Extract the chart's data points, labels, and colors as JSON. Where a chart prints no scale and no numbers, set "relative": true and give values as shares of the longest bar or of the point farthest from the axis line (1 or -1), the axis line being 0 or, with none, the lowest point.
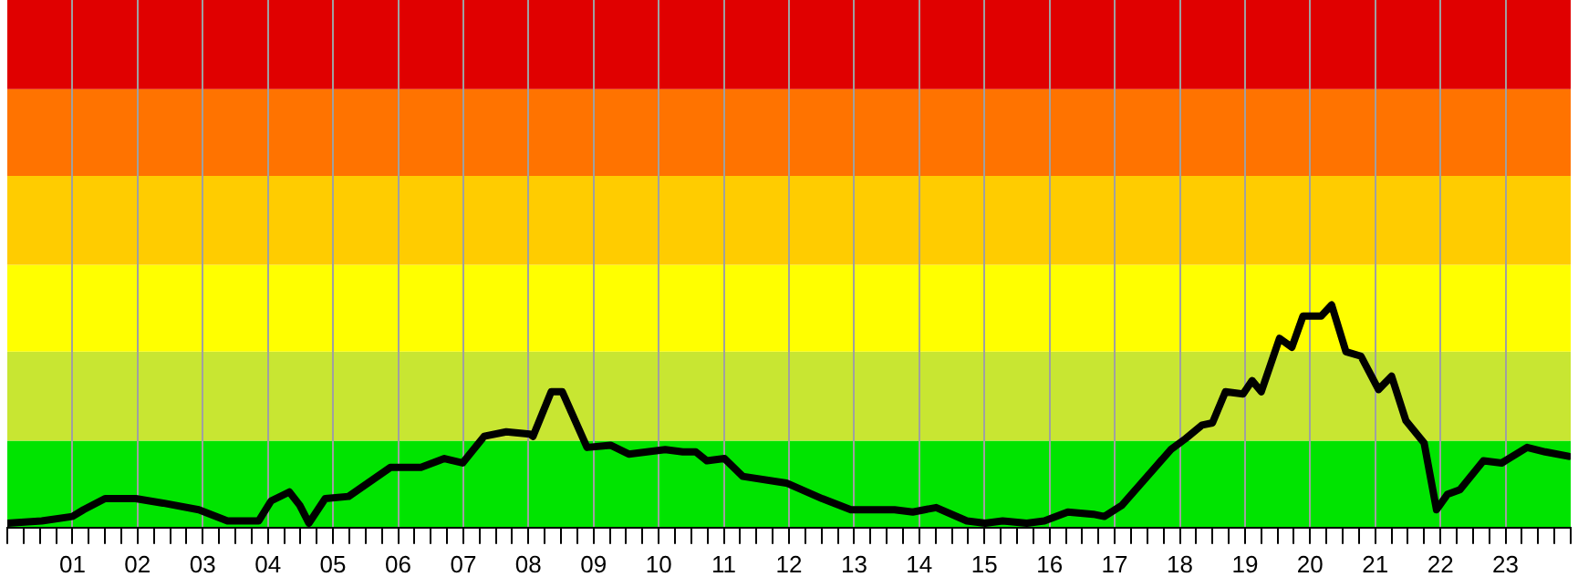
{
  "chart_data": {
    "type": "line",
    "relative": true,
    "x": [
      0,
      0.53,
      1.0,
      1.17,
      1.5,
      1.97,
      2.39,
      2.94,
      3.38,
      3.86,
      4.05,
      4.33,
      4.49,
      4.63,
      4.88,
      5.24,
      5.88,
      6.35,
      6.71,
      6.99,
      7.32,
      7.66,
      8.02,
      8.07,
      8.35,
      8.52,
      8.9,
      9.26,
      9.54,
      10.1,
      10.37,
      10.57,
      10.74,
      11.01,
      11.29,
      11.96,
      12.51,
      12.95,
      13.62,
      13.9,
      14.26,
      14.73,
      15.01,
      15.28,
      15.65,
      15.92,
      16.28,
      16.67,
      16.84,
      17.11,
      17.5,
      17.86,
      18.09,
      18.34,
      18.5,
      18.7,
      18.97,
      19.11,
      19.25,
      19.53,
      19.72,
      19.89,
      20.17,
      20.33,
      20.55,
      20.78,
      21.05,
      21.25,
      21.47,
      21.75,
      21.94,
      22.11,
      22.3,
      22.66,
      22.94,
      23.33,
      23.61,
      23.97
    ],
    "series": [
      {
        "color": "#000000",
        "values": [
          0.02,
          0.03,
          0.05,
          0.08,
          0.13,
          0.13,
          0.11,
          0.08,
          0.03,
          0.03,
          0.12,
          0.16,
          0.1,
          0.02,
          0.13,
          0.14,
          0.27,
          0.27,
          0.31,
          0.29,
          0.41,
          0.43,
          0.42,
          0.41,
          0.61,
          0.61,
          0.36,
          0.37,
          0.33,
          0.35,
          0.34,
          0.34,
          0.3,
          0.31,
          0.23,
          0.2,
          0.13,
          0.08,
          0.08,
          0.07,
          0.09,
          0.03,
          0.02,
          0.03,
          0.02,
          0.03,
          0.07,
          0.06,
          0.05,
          0.1,
          0.23,
          0.35,
          0.4,
          0.46,
          0.47,
          0.61,
          0.6,
          0.66,
          0.61,
          0.85,
          0.81,
          0.95,
          0.95,
          1.0,
          0.79,
          0.77,
          0.62,
          0.68,
          0.48,
          0.38,
          0.08,
          0.15,
          0.17,
          0.3,
          0.29,
          0.36,
          0.34,
          0.32
        ]
      }
    ],
    "xlim": [
      0,
      24
    ],
    "xticks": [
      {
        "value": 0,
        "label": null
      },
      {
        "value": 0.25,
        "label": null
      },
      {
        "value": 0.5,
        "label": null
      },
      {
        "value": 0.75,
        "label": null
      },
      {
        "value": 1,
        "label": "01"
      },
      {
        "value": 1.25,
        "label": null
      },
      {
        "value": 1.5,
        "label": null
      },
      {
        "value": 1.75,
        "label": null
      },
      {
        "value": 2,
        "label": "02"
      },
      {
        "value": 2.25,
        "label": null
      },
      {
        "value": 2.5,
        "label": null
      },
      {
        "value": 2.75,
        "label": null
      },
      {
        "value": 3,
        "label": "03"
      },
      {
        "value": 3.25,
        "label": null
      },
      {
        "value": 3.5,
        "label": null
      },
      {
        "value": 3.75,
        "label": null
      },
      {
        "value": 4,
        "label": "04"
      },
      {
        "value": 4.25,
        "label": null
      },
      {
        "value": 4.5,
        "label": null
      },
      {
        "value": 4.75,
        "label": null
      },
      {
        "value": 5,
        "label": "05"
      },
      {
        "value": 5.25,
        "label": null
      },
      {
        "value": 5.5,
        "label": null
      },
      {
        "value": 5.75,
        "label": null
      },
      {
        "value": 6,
        "label": "06"
      },
      {
        "value": 6.25,
        "label": null
      },
      {
        "value": 6.5,
        "label": null
      },
      {
        "value": 6.75,
        "label": null
      },
      {
        "value": 7,
        "label": "07"
      },
      {
        "value": 7.25,
        "label": null
      },
      {
        "value": 7.5,
        "label": null
      },
      {
        "value": 7.75,
        "label": null
      },
      {
        "value": 8,
        "label": "08"
      },
      {
        "value": 8.25,
        "label": null
      },
      {
        "value": 8.5,
        "label": null
      },
      {
        "value": 8.75,
        "label": null
      },
      {
        "value": 9,
        "label": "09"
      },
      {
        "value": 9.25,
        "label": null
      },
      {
        "value": 9.5,
        "label": null
      },
      {
        "value": 9.75,
        "label": null
      },
      {
        "value": 10,
        "label": "10"
      },
      {
        "value": 10.25,
        "label": null
      },
      {
        "value": 10.5,
        "label": null
      },
      {
        "value": 10.75,
        "label": null
      },
      {
        "value": 11,
        "label": "11"
      },
      {
        "value": 11.25,
        "label": null
      },
      {
        "value": 11.5,
        "label": null
      },
      {
        "value": 11.75,
        "label": null
      },
      {
        "value": 12,
        "label": "12"
      },
      {
        "value": 12.25,
        "label": null
      },
      {
        "value": 12.5,
        "label": null
      },
      {
        "value": 12.75,
        "label": null
      },
      {
        "value": 13,
        "label": "13"
      },
      {
        "value": 13.25,
        "label": null
      },
      {
        "value": 13.5,
        "label": null
      },
      {
        "value": 13.75,
        "label": null
      },
      {
        "value": 14,
        "label": "14"
      },
      {
        "value": 14.25,
        "label": null
      },
      {
        "value": 14.5,
        "label": null
      },
      {
        "value": 14.75,
        "label": null
      },
      {
        "value": 15,
        "label": "15"
      },
      {
        "value": 15.25,
        "label": null
      },
      {
        "value": 15.5,
        "label": null
      },
      {
        "value": 15.75,
        "label": null
      },
      {
        "value": 16,
        "label": "16"
      },
      {
        "value": 16.25,
        "label": null
      },
      {
        "value": 16.5,
        "label": null
      },
      {
        "value": 16.75,
        "label": null
      },
      {
        "value": 17,
        "label": "17"
      },
      {
        "value": 17.25,
        "label": null
      },
      {
        "value": 17.5,
        "label": null
      },
      {
        "value": 17.75,
        "label": null
      },
      {
        "value": 18,
        "label": "18"
      },
      {
        "value": 18.25,
        "label": null
      },
      {
        "value": 18.5,
        "label": null
      },
      {
        "value": 18.75,
        "label": null
      },
      {
        "value": 19,
        "label": "19"
      },
      {
        "value": 19.25,
        "label": null
      },
      {
        "value": 19.5,
        "label": null
      },
      {
        "value": 19.75,
        "label": null
      },
      {
        "value": 20,
        "label": "20"
      },
      {
        "value": 20.25,
        "label": null
      },
      {
        "value": 20.5,
        "label": null
      },
      {
        "value": 20.75,
        "label": null
      },
      {
        "value": 21,
        "label": "21"
      },
      {
        "value": 21.25,
        "label": null
      },
      {
        "value": 21.5,
        "label": null
      },
      {
        "value": 21.75,
        "label": null
      },
      {
        "value": 22,
        "label": "22"
      },
      {
        "value": 22.25,
        "label": null
      },
      {
        "value": 22.5,
        "label": null
      },
      {
        "value": 22.75,
        "label": null
      },
      {
        "value": 23,
        "label": "23"
      },
      {
        "value": 23.25,
        "label": null
      },
      {
        "value": 23.5,
        "label": null
      },
      {
        "value": 23.75,
        "label": null
      },
      {
        "value": 24,
        "label": null
      }
    ],
    "bands": [
      {
        "axis": "y",
        "from": 0,
        "to": 0.39,
        "color": "#00e400"
      },
      {
        "axis": "y",
        "from": 0.39,
        "to": 0.79,
        "color": "#c8e632"
      },
      {
        "axis": "y",
        "from": 0.79,
        "to": 1.18,
        "color": "#ffff00"
      },
      {
        "axis": "y",
        "from": 1.18,
        "to": 1.58,
        "color": "#ffcc00"
      },
      {
        "axis": "y",
        "from": 1.58,
        "to": 1.97,
        "color": "#ff7300"
      },
      {
        "axis": "y",
        "from": 1.97,
        "to": 2.37,
        "color": "#e00000"
      }
    ],
    "grid": "x",
    "legend": false,
    "marker": "none",
    "line_style": "solid"
  }
}
